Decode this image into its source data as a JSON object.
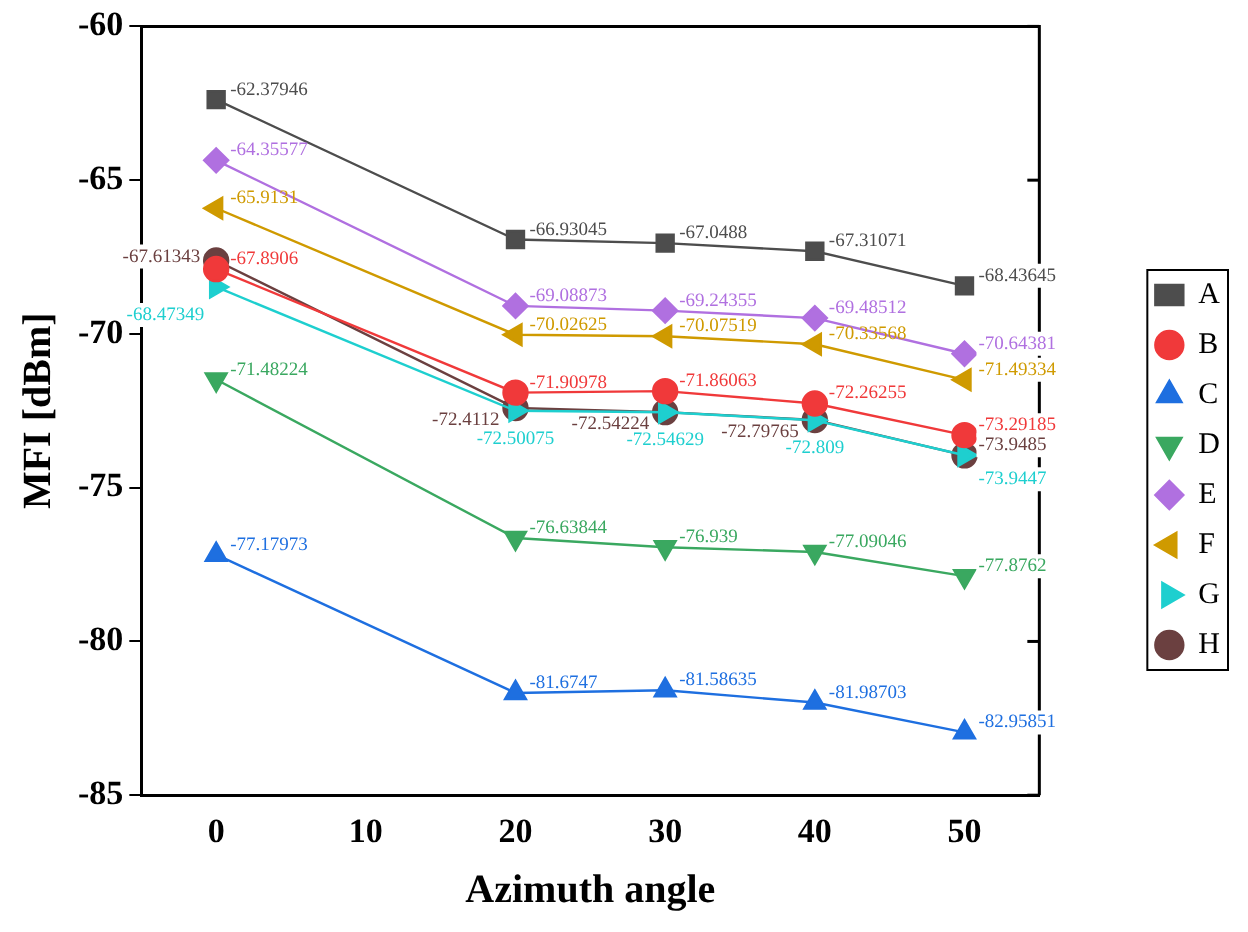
{
  "chart_data": {
    "type": "line",
    "xlabel": "Azimuth angle",
    "ylabel": "MFI [dBm]",
    "x": [
      0,
      20,
      30,
      40,
      50
    ],
    "xlim": [
      -5,
      55
    ],
    "xticks": [
      0,
      10,
      20,
      30,
      40,
      50
    ],
    "ylim": [
      -85,
      -60
    ],
    "yticks": [
      -85,
      -80,
      -75,
      -70,
      -65,
      -60
    ],
    "grid": false,
    "legend": "right",
    "data_labels": true,
    "line_style": "solid",
    "series": [
      {
        "name": "A",
        "color": "#4d4d4d",
        "marker": "square",
        "values": [
          -62.37946,
          -66.93045,
          -67.0488,
          -67.31071,
          -68.43645
        ]
      },
      {
        "name": "B",
        "color": "#f0393a",
        "marker": "circle",
        "values": [
          -67.8906,
          -71.90978,
          -71.86063,
          -72.26255,
          -73.29185
        ]
      },
      {
        "name": "C",
        "color": "#1e6fe0",
        "marker": "triangle",
        "values": [
          -77.17973,
          -81.6747,
          -81.58635,
          -81.98703,
          -82.95851
        ]
      },
      {
        "name": "D",
        "color": "#3aa860",
        "marker": "triangle",
        "values": [
          -71.48224,
          -76.63844,
          -76.939,
          -77.09046,
          -77.8762
        ]
      },
      {
        "name": "E",
        "color": "#b070e0",
        "marker": "diamond",
        "values": [
          -64.35577,
          -69.08873,
          -69.24355,
          -69.48512,
          -70.64381
        ]
      },
      {
        "name": "F",
        "color": "#cf9a00",
        "marker": "triangle",
        "values": [
          -65.9131,
          -70.02625,
          -70.07519,
          -70.33568,
          -71.49334
        ]
      },
      {
        "name": "G",
        "color": "#1ecfcf",
        "marker": "triangle",
        "values": [
          -68.47349,
          -72.50075,
          -72.54629,
          -72.809,
          -73.9447
        ]
      },
      {
        "name": "H",
        "color": "#6b4040",
        "marker": "circle",
        "values": [
          -67.61343,
          -72.4112,
          -72.54224,
          -72.79765,
          -73.9485
        ]
      }
    ]
  }
}
